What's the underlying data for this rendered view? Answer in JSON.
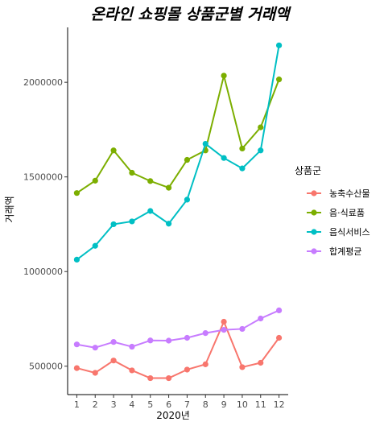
{
  "chart_data": {
    "type": "line",
    "title": "온라인 쇼핑몰 상품군별 거래액",
    "xlabel": "2020년",
    "ylabel": "거래액",
    "x": [
      1,
      2,
      3,
      4,
      5,
      6,
      7,
      8,
      9,
      10,
      11,
      12
    ],
    "x_tick_labels": [
      "1",
      "2",
      "3",
      "4",
      "5",
      "6",
      "7",
      "8",
      "9",
      "10",
      "11",
      "12"
    ],
    "xlim": [
      0.5,
      12.5
    ],
    "ylim": [
      350000,
      2290000
    ],
    "y_ticks": [
      500000,
      1000000,
      1500000,
      2000000
    ],
    "y_tick_labels": [
      "500000",
      "1000000",
      "1500000",
      "2000000"
    ],
    "grid": false,
    "legend": {
      "title": "상품군",
      "position": "right"
    },
    "series": [
      {
        "name": "농축수산물",
        "color": "#F8766D",
        "values": [
          490000,
          465000,
          530000,
          478000,
          437000,
          437000,
          482000,
          510000,
          735000,
          495000,
          518000,
          650000
        ]
      },
      {
        "name": "음·식료품",
        "color": "#7CAE00",
        "values": [
          1415000,
          1480000,
          1640000,
          1522000,
          1478000,
          1443000,
          1590000,
          1640000,
          2035000,
          1650000,
          1762000,
          2015000
        ]
      },
      {
        "name": "음식서비스",
        "color": "#00BFC4",
        "values": [
          1063000,
          1136000,
          1250000,
          1265000,
          1320000,
          1253000,
          1380000,
          1675000,
          1600000,
          1545000,
          1640000,
          2195000
        ]
      },
      {
        "name": "합계평균",
        "color": "#C77CFF",
        "values": [
          615000,
          598000,
          628000,
          603000,
          636000,
          635000,
          650000,
          675000,
          692000,
          697000,
          752000,
          795000
        ]
      }
    ]
  }
}
